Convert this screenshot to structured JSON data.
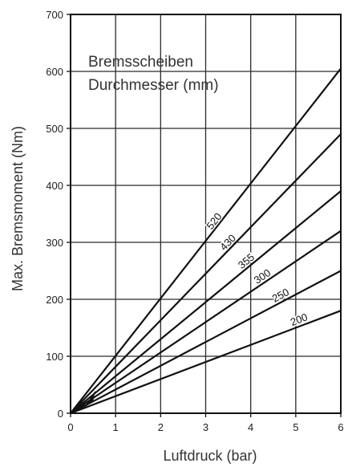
{
  "chart_data": {
    "type": "line",
    "xlabel": "Luftdruck (bar)",
    "ylabel": "Max. Bremsmoment (Nm)",
    "legend_title_line1": "Bremsscheiben",
    "legend_title_line2": "Durchmesser (mm)",
    "xlim": [
      0,
      6
    ],
    "ylim": [
      0,
      700
    ],
    "x_ticks": [
      0,
      1,
      2,
      3,
      4,
      5,
      6
    ],
    "y_ticks": [
      0,
      100,
      200,
      300,
      400,
      500,
      600,
      700
    ],
    "grid": true,
    "series": [
      {
        "name": "520",
        "x": [
          0,
          6
        ],
        "y": [
          0,
          605
        ],
        "label_at_x": 3.25
      },
      {
        "name": "430",
        "x": [
          0,
          6
        ],
        "y": [
          0,
          490
        ],
        "label_at_x": 3.55
      },
      {
        "name": "355",
        "x": [
          0,
          6
        ],
        "y": [
          0,
          390
        ],
        "label_at_x": 3.95
      },
      {
        "name": "300",
        "x": [
          0,
          6
        ],
        "y": [
          0,
          320
        ],
        "label_at_x": 4.3
      },
      {
        "name": "250",
        "x": [
          0,
          6
        ],
        "y": [
          0,
          250
        ],
        "label_at_x": 4.7
      },
      {
        "name": "200",
        "x": [
          0,
          6
        ],
        "y": [
          0,
          180
        ],
        "label_at_x": 5.1
      }
    ]
  }
}
